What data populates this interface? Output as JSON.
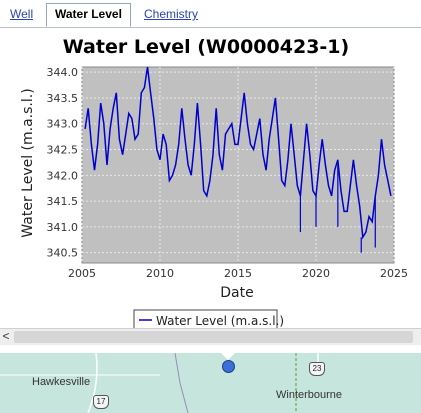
{
  "tabs": [
    {
      "label": "Well"
    },
    {
      "label": "Water Level"
    },
    {
      "label": "Chemistry"
    }
  ],
  "chart_data": {
    "type": "line",
    "title": "Water Level (W0000423-1)",
    "xlabel": "Date",
    "ylabel": "Water Level (m.a.s.l.)",
    "xlim": [
      2005,
      2025
    ],
    "ylim": [
      340.3,
      344.1
    ],
    "grid": true,
    "legend_position": "bottom",
    "line_color": "#0000cc",
    "plot_background": "#c0c0c0",
    "x_ticks": [
      2005,
      2010,
      2015,
      2020,
      2025
    ],
    "y_ticks": [
      340.5,
      341.0,
      341.5,
      342.0,
      342.5,
      343.0,
      343.5,
      344.0
    ],
    "series": [
      {
        "name": "Water Level (m.a.s.l.)",
        "x": [
          2005.2,
          2005.4,
          2005.6,
          2005.8,
          2006.0,
          2006.2,
          2006.4,
          2006.6,
          2006.8,
          2007.0,
          2007.2,
          2007.4,
          2007.6,
          2007.8,
          2008.0,
          2008.2,
          2008.4,
          2008.6,
          2008.8,
          2009.0,
          2009.2,
          2009.4,
          2009.6,
          2009.8,
          2010.0,
          2010.2,
          2010.4,
          2010.6,
          2010.8,
          2011.0,
          2011.2,
          2011.4,
          2011.6,
          2011.8,
          2012.0,
          2012.2,
          2012.4,
          2012.6,
          2012.8,
          2013.0,
          2013.2,
          2013.4,
          2013.6,
          2013.8,
          2014.0,
          2014.2,
          2014.4,
          2014.6,
          2014.8,
          2015.0,
          2015.2,
          2015.4,
          2015.6,
          2015.8,
          2016.0,
          2016.2,
          2016.4,
          2016.6,
          2016.8,
          2017.0,
          2017.2,
          2017.4,
          2017.6,
          2017.8,
          2018.0,
          2018.2,
          2018.4,
          2018.6,
          2018.8,
          2019.0,
          2019.2,
          2019.4,
          2019.6,
          2019.8,
          2020.0,
          2020.2,
          2020.4,
          2020.6,
          2020.8,
          2021.0,
          2021.2,
          2021.4,
          2021.6,
          2021.8,
          2022.0,
          2022.2,
          2022.4,
          2022.6,
          2022.8,
          2023.0,
          2023.2,
          2023.4,
          2023.6,
          2023.8,
          2024.0,
          2024.2,
          2024.4,
          2024.6,
          2024.8
        ],
        "y": [
          342.9,
          343.3,
          342.6,
          342.1,
          342.6,
          343.4,
          343.0,
          342.2,
          342.9,
          343.3,
          343.6,
          342.7,
          342.4,
          342.8,
          343.2,
          343.1,
          342.7,
          342.8,
          343.6,
          343.7,
          344.1,
          343.6,
          343.1,
          342.5,
          342.3,
          342.8,
          342.6,
          341.9,
          342.0,
          342.2,
          342.6,
          343.3,
          342.7,
          342.2,
          342.0,
          342.6,
          343.4,
          342.6,
          341.7,
          341.6,
          341.9,
          342.4,
          343.3,
          342.4,
          342.1,
          342.8,
          342.9,
          343.0,
          342.6,
          342.6,
          343.1,
          343.6,
          343.0,
          342.6,
          342.5,
          342.8,
          343.1,
          342.4,
          342.1,
          342.7,
          343.1,
          343.5,
          342.7,
          341.9,
          341.8,
          342.3,
          343.0,
          342.4,
          341.8,
          341.6,
          342.3,
          343.0,
          342.4,
          341.7,
          341.6,
          342.2,
          342.7,
          342.2,
          341.8,
          341.6,
          342.1,
          342.3,
          341.7,
          341.3,
          341.3,
          341.8,
          342.3,
          341.8,
          341.4,
          340.8,
          340.9,
          341.2,
          341.1,
          341.6,
          342.0,
          342.7,
          342.2,
          341.9,
          341.6
        ],
        "dips": [
          [
            2019.0,
            340.9
          ],
          [
            2020.0,
            341.0
          ],
          [
            2021.4,
            341.0
          ],
          [
            2022.9,
            340.5
          ],
          [
            2023.8,
            340.6
          ]
        ]
      }
    ]
  },
  "scrollbar": {
    "left_arrow": "<"
  },
  "map": {
    "places": [
      {
        "name": "Hawkesville"
      },
      {
        "name": "Winterbourne"
      }
    ],
    "routes": [
      {
        "number": "17"
      },
      {
        "number": "23"
      }
    ]
  }
}
